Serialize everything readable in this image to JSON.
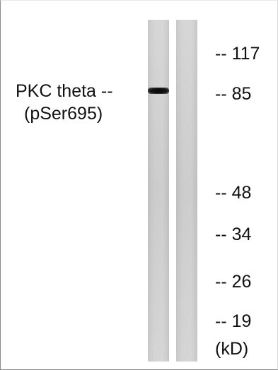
{
  "blot": {
    "lanes": 2,
    "band_lane": 1,
    "band_marker_kd": 85
  },
  "label": {
    "line1": "PKC theta --",
    "line2": "(pSer695)"
  },
  "markers": [
    {
      "text": "-- 117",
      "kd": 117
    },
    {
      "text": "-- 85",
      "kd": 85
    },
    {
      "text": "-- 48",
      "kd": 48
    },
    {
      "text": "-- 34",
      "kd": 34
    },
    {
      "text": "-- 26",
      "kd": 26
    },
    {
      "text": "-- 19",
      "kd": 19
    }
  ],
  "unit": "(kD)"
}
